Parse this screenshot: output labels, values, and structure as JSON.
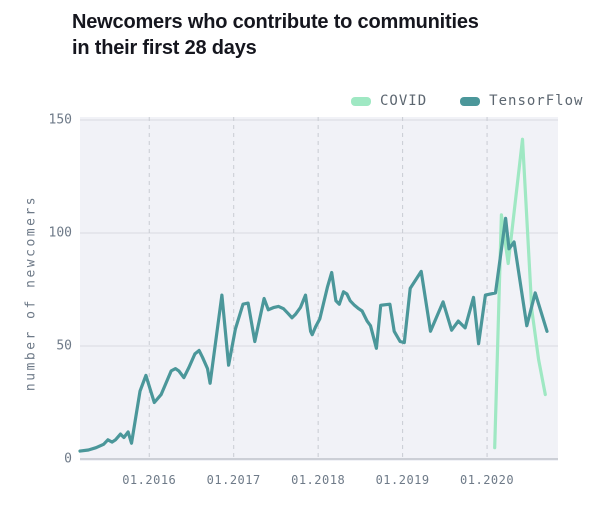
{
  "title_lines": {
    "line1": "Newcomers who contribute to communities",
    "line2": "in their first 28 days"
  },
  "legend": [
    {
      "label": "COVID"
    },
    {
      "label": "TensorFlow"
    }
  ],
  "colors": {
    "title": "#15161e",
    "covid_line": "#9fe8c3",
    "tensorflow_line": "#4b979a",
    "plot_background": "#f1f2f7",
    "gridline": "#d9dbe0",
    "axis_line": "#b6bac1",
    "dashed_gridline": "#c9ccd3",
    "tick_text": "#6e7a88",
    "legend_text": "#5c6670"
  },
  "chart_data": {
    "type": "line",
    "title": "Newcomers who contribute to communities in their first 28 days",
    "xlabel": "",
    "ylabel": "number of newcomers",
    "xlim": [
      2015.18,
      2020.84
    ],
    "ylim": [
      0,
      150
    ],
    "grid": "horizontal solid at 50/100/150, vertical dashed at year boundaries",
    "legend_position": "top-right",
    "yticks": [
      {
        "value": 0,
        "label": "0"
      },
      {
        "value": 50,
        "label": "50"
      },
      {
        "value": 100,
        "label": "100"
      },
      {
        "value": 150,
        "label": "150"
      }
    ],
    "xticks": [
      {
        "value": 2016,
        "label": "01.2016"
      },
      {
        "value": 2017,
        "label": "01.2017"
      },
      {
        "value": 2018,
        "label": "01.2018"
      },
      {
        "value": 2019,
        "label": "01.2019"
      },
      {
        "value": 2020,
        "label": "01.2020"
      }
    ],
    "series": [
      {
        "name": "COVID",
        "color": "#9fe8c3",
        "points": [
          [
            2020.09,
            5
          ],
          [
            2020.17,
            108
          ],
          [
            2020.25,
            86.5
          ],
          [
            2020.42,
            141.5
          ],
          [
            2020.53,
            66
          ],
          [
            2020.61,
            44
          ],
          [
            2020.69,
            28.5
          ]
        ]
      },
      {
        "name": "TensorFlow",
        "color": "#4b979a",
        "points": [
          [
            2015.18,
            3.5
          ],
          [
            2015.28,
            4
          ],
          [
            2015.37,
            5
          ],
          [
            2015.46,
            6.5
          ],
          [
            2015.51,
            8.5
          ],
          [
            2015.56,
            7.5
          ],
          [
            2015.6,
            8.5
          ],
          [
            2015.66,
            11
          ],
          [
            2015.7,
            9.5
          ],
          [
            2015.75,
            12
          ],
          [
            2015.79,
            7
          ],
          [
            2015.89,
            30
          ],
          [
            2015.96,
            37
          ],
          [
            2016.06,
            25
          ],
          [
            2016.14,
            28.5
          ],
          [
            2016.26,
            39
          ],
          [
            2016.31,
            40
          ],
          [
            2016.35,
            39
          ],
          [
            2016.41,
            36
          ],
          [
            2016.47,
            40.5
          ],
          [
            2016.54,
            46.5
          ],
          [
            2016.59,
            48
          ],
          [
            2016.63,
            45
          ],
          [
            2016.69,
            40
          ],
          [
            2016.72,
            33.5
          ],
          [
            2016.86,
            72.5
          ],
          [
            2016.94,
            41.5
          ],
          [
            2017.02,
            57.5
          ],
          [
            2017.11,
            68.5
          ],
          [
            2017.17,
            69
          ],
          [
            2017.25,
            52
          ],
          [
            2017.36,
            71
          ],
          [
            2017.41,
            66
          ],
          [
            2017.47,
            67
          ],
          [
            2017.53,
            67.5
          ],
          [
            2017.59,
            66.5
          ],
          [
            2017.64,
            64.5
          ],
          [
            2017.69,
            62.5
          ],
          [
            2017.73,
            64
          ],
          [
            2017.79,
            67
          ],
          [
            2017.85,
            72.5
          ],
          [
            2017.91,
            56.5
          ],
          [
            2017.93,
            55
          ],
          [
            2017.97,
            58.5
          ],
          [
            2018.02,
            62
          ],
          [
            2018.11,
            76
          ],
          [
            2018.16,
            82.5
          ],
          [
            2018.21,
            70
          ],
          [
            2018.25,
            68.5
          ],
          [
            2018.3,
            74
          ],
          [
            2018.34,
            73
          ],
          [
            2018.38,
            70
          ],
          [
            2018.43,
            68
          ],
          [
            2018.48,
            66.5
          ],
          [
            2018.52,
            65.5
          ],
          [
            2018.58,
            61
          ],
          [
            2018.62,
            59
          ],
          [
            2018.69,
            49
          ],
          [
            2018.74,
            68
          ],
          [
            2018.85,
            68.5
          ],
          [
            2018.9,
            56.5
          ],
          [
            2018.97,
            52
          ],
          [
            2019.02,
            51.5
          ],
          [
            2019.09,
            75.5
          ],
          [
            2019.22,
            83
          ],
          [
            2019.33,
            56.5
          ],
          [
            2019.48,
            69.5
          ],
          [
            2019.58,
            57
          ],
          [
            2019.66,
            61
          ],
          [
            2019.74,
            58
          ],
          [
            2019.84,
            71.5
          ],
          [
            2019.9,
            51
          ],
          [
            2019.98,
            72.5
          ],
          [
            2020.1,
            73.5
          ],
          [
            2020.22,
            106.5
          ],
          [
            2020.26,
            93
          ],
          [
            2020.32,
            96
          ],
          [
            2020.47,
            59
          ],
          [
            2020.57,
            73.5
          ],
          [
            2020.71,
            56.5
          ]
        ]
      }
    ]
  }
}
